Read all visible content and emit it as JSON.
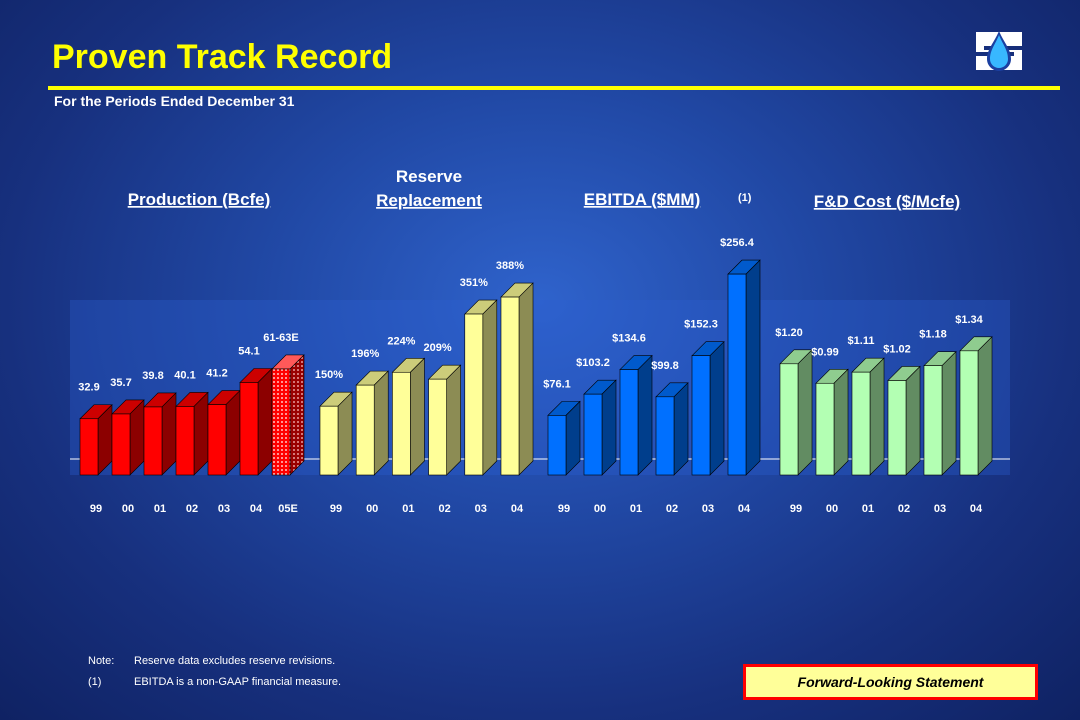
{
  "header": {
    "title": "Proven Track Record",
    "subtitle": "For the Periods Ended December 31"
  },
  "logo": {
    "icon": "water-drop-logo-icon"
  },
  "chart_data": [
    {
      "type": "bar",
      "title": "Production (Bcfe)",
      "categories": [
        "99",
        "00",
        "01",
        "02",
        "03",
        "04",
        "05E"
      ],
      "values": [
        32.9,
        35.7,
        39.8,
        40.1,
        41.2,
        54.1,
        62
      ],
      "labels": [
        "32.9",
        "35.7",
        "39.8",
        "40.1",
        "41.2",
        "54.1",
        "61-63E"
      ],
      "color": "#ff0000"
    },
    {
      "type": "bar",
      "title": "Reserve Replacement",
      "categories": [
        "99",
        "00",
        "01",
        "02",
        "03",
        "04"
      ],
      "values": [
        150,
        196,
        224,
        209,
        351,
        388
      ],
      "labels": [
        "150%",
        "196%",
        "224%",
        "209%",
        "351%",
        "388%"
      ],
      "color": "#ffff99"
    },
    {
      "type": "bar",
      "title": "EBITDA ($MM)",
      "footnote_marker": "(1)",
      "categories": [
        "99",
        "00",
        "01",
        "02",
        "03",
        "04"
      ],
      "values": [
        76.1,
        103.2,
        134.6,
        99.8,
        152.3,
        256.4
      ],
      "labels": [
        "$76.1",
        "$103.2",
        "$134.6",
        "$99.8",
        "$152.3",
        "$256.4"
      ],
      "color": "#0070ff"
    },
    {
      "type": "bar",
      "title": "F&D Cost ($/Mcfe)",
      "categories": [
        "99",
        "00",
        "01",
        "02",
        "03",
        "04"
      ],
      "values": [
        1.2,
        0.99,
        1.11,
        1.02,
        1.18,
        1.34
      ],
      "labels": [
        "$1.20",
        "$0.99",
        "$1.11",
        "$1.02",
        "$1.18",
        "$1.34"
      ],
      "color": "#b3ffb3"
    }
  ],
  "notes": [
    {
      "key": "Note:",
      "text": "Reserve data excludes reserve revisions."
    },
    {
      "key": "(1)",
      "text": "EBITDA is a non-GAAP financial measure."
    }
  ],
  "forward_looking": {
    "label": "Forward-Looking Statement"
  }
}
